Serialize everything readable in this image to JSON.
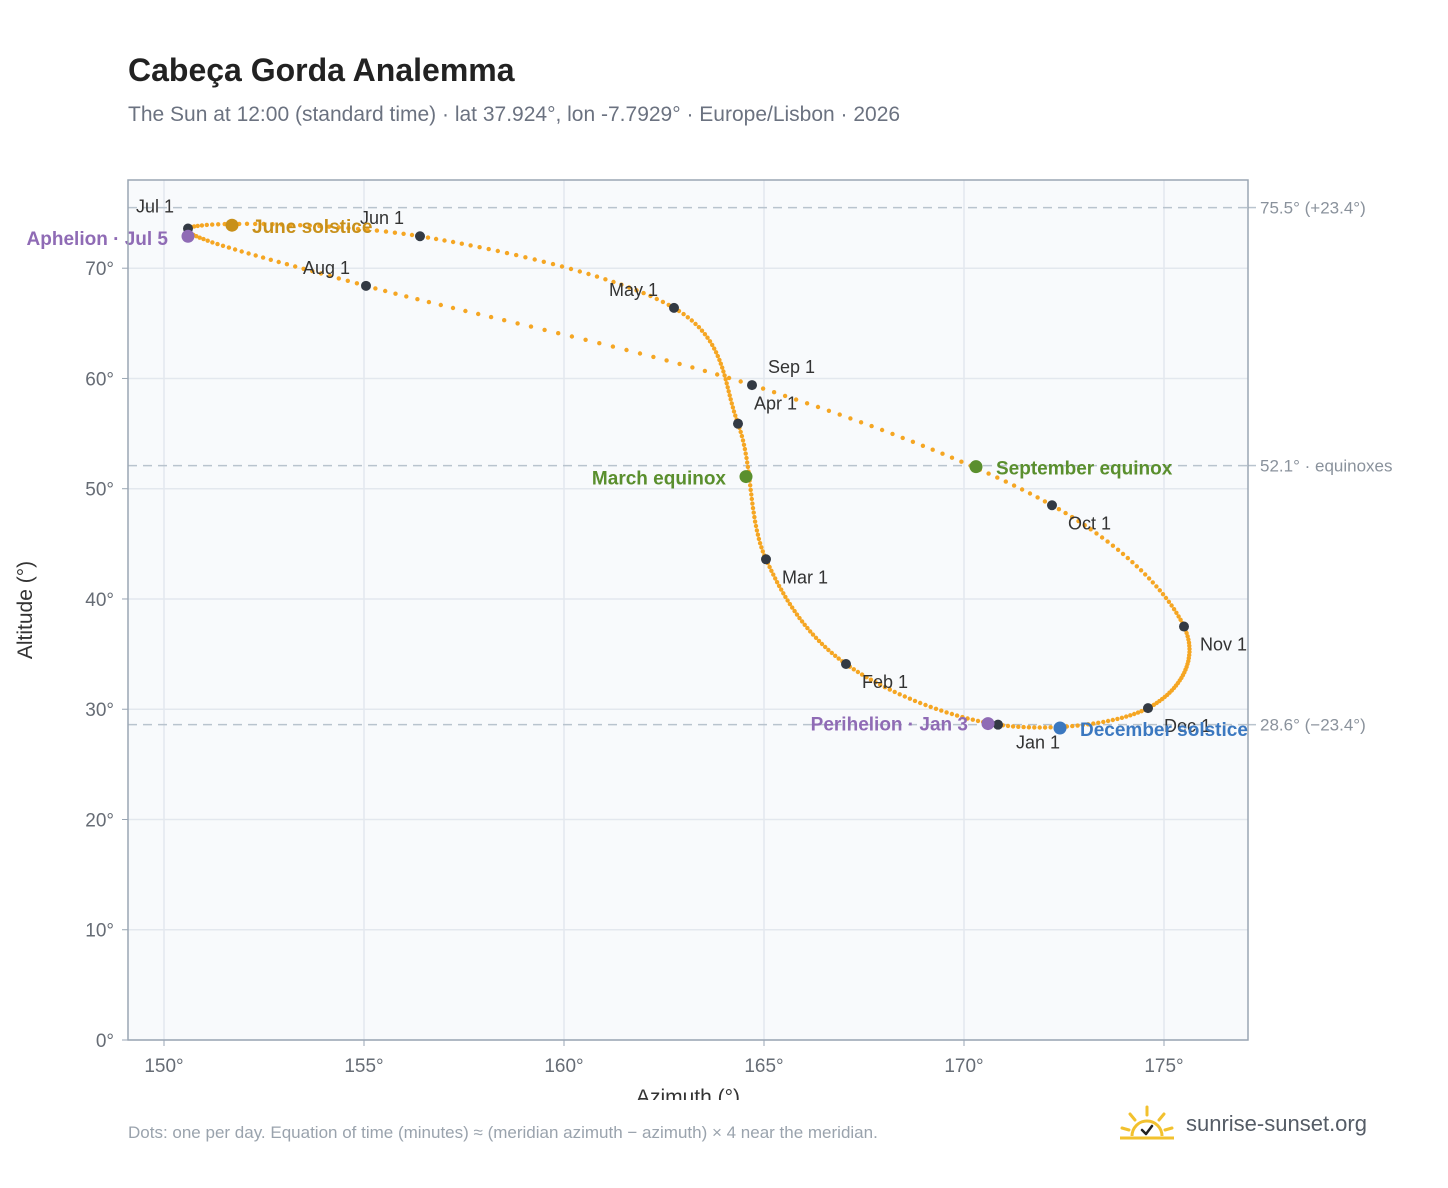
{
  "title": "Cabeça Gorda Analemma",
  "subtitle": "The Sun at 12:00 (standard time) · lat 37.924°, lon -7.7929° · Europe/Lisbon · 2026",
  "footnote": "Dots: one per day. Equation of time (minutes) ≈ (meridian azimuth − azimuth) × 4 near the meridian.",
  "brand": {
    "name": "sunrise-sunset.org",
    "icon": "sun-icon",
    "color": "#f2c12e"
  },
  "colors": {
    "curve": "#f5a623",
    "month_dot": "#333a44",
    "solstice_june": "#c8901a",
    "equinox": "#5a8f2e",
    "december": "#3b78c0",
    "apsis": "#8f6bb5",
    "reference": "#b9c4ce",
    "plot_bg": "#f8fafc",
    "grid": "#e3e8ee",
    "frame": "#9aa6b4",
    "tick_text": "#666c75",
    "ref_text": "#8a929c"
  },
  "chart_data": {
    "type": "scatter",
    "title": "Cabeça Gorda Analemma",
    "xlabel": "Azimuth (°)",
    "ylabel": "Altitude (°)",
    "xlim": [
      149.1,
      177.1
    ],
    "ylim": [
      0,
      78
    ],
    "xticks": [
      150,
      155,
      160,
      165,
      170,
      175
    ],
    "yticks": [
      0,
      10,
      20,
      30,
      40,
      50,
      60,
      70
    ],
    "grid": true,
    "series": [],
    "month_points": [
      {
        "label": "Jan 1",
        "x": 170.85,
        "y": 28.6
      },
      {
        "label": "Feb 1",
        "x": 167.05,
        "y": 34.1
      },
      {
        "label": "Mar 1",
        "x": 165.05,
        "y": 43.6
      },
      {
        "label": "Apr 1",
        "x": 164.35,
        "y": 55.9
      },
      {
        "label": "May 1",
        "x": 162.75,
        "y": 66.4
      },
      {
        "label": "Jun 1",
        "x": 156.4,
        "y": 72.9
      },
      {
        "label": "Jul 1",
        "x": 150.6,
        "y": 73.6
      },
      {
        "label": "Aug 1",
        "x": 155.05,
        "y": 68.4
      },
      {
        "label": "Sep 1",
        "x": 164.7,
        "y": 59.4
      },
      {
        "label": "Oct 1",
        "x": 172.2,
        "y": 48.5
      },
      {
        "label": "Nov 1",
        "x": 175.5,
        "y": 37.5
      },
      {
        "label": "Dec 1",
        "x": 174.6,
        "y": 30.1
      }
    ],
    "events": [
      {
        "label": "Aphelion · Jul 5",
        "x": 150.6,
        "y": 72.9,
        "kind": "apsis"
      },
      {
        "label": "June solstice",
        "x": 151.7,
        "y": 73.9,
        "kind": "solstice_june"
      },
      {
        "label": "March equinox",
        "x": 164.55,
        "y": 51.1,
        "kind": "equinox"
      },
      {
        "label": "September equinox",
        "x": 170.3,
        "y": 52.0,
        "kind": "equinox"
      },
      {
        "label": "Perihelion · Jan 3",
        "x": 170.6,
        "y": 28.7,
        "kind": "apsis"
      },
      {
        "label": "December solstice",
        "x": 172.4,
        "y": 28.3,
        "kind": "december"
      }
    ],
    "reference_lines": [
      {
        "y": 75.5,
        "label": "75.5° (+23.4°)"
      },
      {
        "y": 52.1,
        "label": "52.1° · equinoxes"
      },
      {
        "y": 28.6,
        "label": "28.6° (−23.4°)"
      }
    ]
  }
}
